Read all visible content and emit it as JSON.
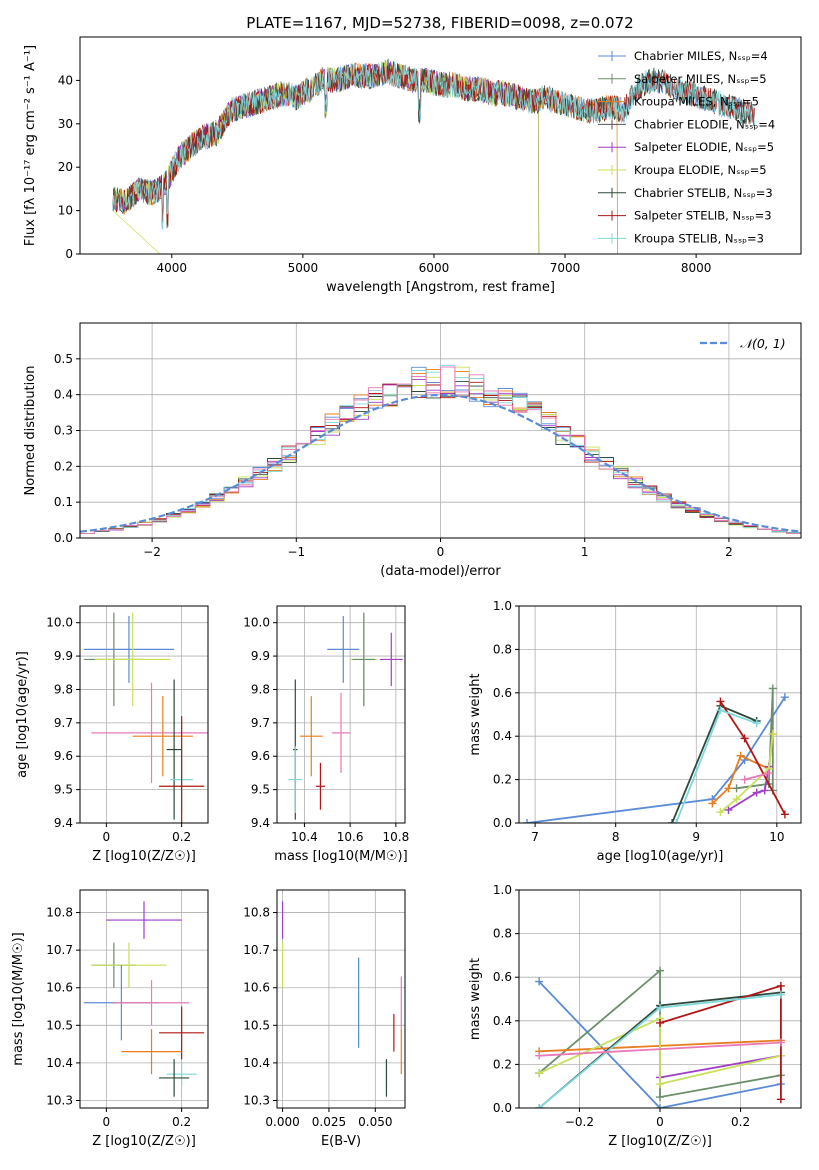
{
  "figure": {
    "title": "PLATE=1167, MJD=52738, FIBERID=0098, z=0.072"
  },
  "colors": {
    "Chabrier MILES": "#5b8bd6",
    "Salpeter MILES": "#6b8e6b",
    "Kroupa MILES": "#e87d1e",
    "Chabrier ELODIE": "#555555",
    "Salpeter ELODIE": "#a03ec8",
    "Kroupa ELODIE": "#c8e05a",
    "Chabrier STELIB": "#2e4a3a",
    "Salpeter STELIB": "#b01616",
    "Kroupa STELIB": "#7fd8dc",
    "Pink": "#e87ab8",
    "normal": "#5b8bd6"
  },
  "chart_data": [
    {
      "id": "spectrum",
      "type": "line",
      "title": "PLATE=1167, MJD=52738, FIBERID=0098, z=0.072",
      "xlabel": "wavelength [Angstrom, rest frame]",
      "ylabel": "Flux [fλ 10⁻¹⁷ erg cm⁻² s⁻¹ A⁻¹]",
      "xlim": [
        3300,
        8800
      ],
      "ylim": [
        0,
        50
      ],
      "xticks": [
        4000,
        5000,
        6000,
        7000,
        8000
      ],
      "yticks": [
        0,
        10,
        20,
        30,
        40
      ],
      "legend_position": "top-right",
      "legend": [
        "Chabrier MILES, N_SSP=4",
        "Salpeter MILES, N_SSP=5",
        "Kroupa MILES, N_SSP=5",
        "Chabrier ELODIE, N_SSP=4",
        "Salpeter ELODIE, N_SSP=5",
        "Kroupa ELODIE, N_SSP=5",
        "Chabrier STELIB, N_SSP=3",
        "Salpeter STELIB, N_SSP=3",
        "Kroupa STELIB, N_SSP=3"
      ],
      "series_keys": [
        "Chabrier MILES",
        "Salpeter MILES",
        "Kroupa MILES",
        "Chabrier ELODIE",
        "Salpeter ELODIE",
        "Kroupa ELODIE",
        "Chabrier STELIB",
        "Salpeter STELIB",
        "Kroupa STELIB"
      ],
      "x": [
        3550,
        3650,
        3750,
        3850,
        3950,
        4050,
        4150,
        4250,
        4350,
        4450,
        4550,
        4650,
        4750,
        4850,
        4950,
        5050,
        5150,
        5250,
        5350,
        5450,
        5550,
        5650,
        5750,
        5850,
        5950,
        6050,
        6150,
        6250,
        6350,
        6450,
        6550,
        6650,
        6750,
        6850,
        6950,
        7050,
        7150,
        7250,
        7350,
        7450,
        7550,
        7650,
        7750,
        7850,
        7950,
        8050,
        8150,
        8250,
        8350,
        8450
      ],
      "y": [
        13,
        12,
        15,
        14,
        16,
        22,
        25,
        27,
        28,
        33,
        34,
        35,
        36,
        37,
        36,
        38,
        40,
        40,
        41,
        41,
        41,
        42,
        41,
        40,
        40,
        39,
        39,
        38,
        38,
        37,
        37,
        36,
        35,
        36,
        35,
        34,
        33,
        33,
        34,
        33,
        38,
        40,
        40,
        38,
        37,
        36,
        35,
        34,
        33,
        32
      ],
      "ranges": {
        "Chabrier MILES": [
          3550,
          8450
        ],
        "Salpeter MILES": [
          3550,
          8450
        ],
        "Kroupa MILES": [
          3550,
          7400
        ],
        "Chabrier ELODIE": [
          3550,
          6800
        ],
        "Salpeter ELODIE": [
          3550,
          6800
        ],
        "Kroupa ELODIE": [
          3550,
          6800
        ],
        "Chabrier STELIB": [
          3550,
          8450
        ],
        "Salpeter STELIB": [
          3550,
          8450
        ],
        "Kroupa STELIB": [
          3550,
          8450
        ]
      }
    },
    {
      "id": "residuals",
      "type": "histogram",
      "xlabel": "(data-model)/error",
      "ylabel": "Normed distribution",
      "xlim": [
        -2.5,
        2.5
      ],
      "ylim": [
        0,
        0.6
      ],
      "xticks": [
        -2,
        -1,
        0,
        1,
        2
      ],
      "yticks": [
        0.0,
        0.1,
        0.2,
        0.3,
        0.4,
        0.5
      ],
      "grid": true,
      "legend_position": "top-right",
      "legend": [
        "𝒩(0, 1)"
      ],
      "series_keys": [
        "Chabrier MILES",
        "Kroupa MILES",
        "Salpeter ELODIE",
        "Kroupa ELODIE",
        "Chabrier STELIB",
        "Salpeter STELIB",
        "Kroupa STELIB",
        "Pink"
      ],
      "normal_curve": {
        "mean": 0,
        "sigma": 1
      }
    },
    {
      "id": "age-vs-Z",
      "type": "scatter",
      "xlabel": "Z [log10(Z/Z☉)]",
      "ylabel": "age [log10(age/yr)]",
      "xlim": [
        -0.07,
        0.27
      ],
      "ylim": [
        9.4,
        10.05
      ],
      "xticks": [
        0.0,
        0.2
      ],
      "yticks": [
        9.4,
        9.5,
        9.6,
        9.7,
        9.8,
        9.9,
        10.0
      ],
      "grid": true,
      "points": [
        {
          "key": "Chabrier MILES",
          "x": 0.06,
          "y": 9.92,
          "xerr": 0.12,
          "yerr": 0.1
        },
        {
          "key": "Salpeter MILES",
          "x": 0.02,
          "y": 9.89,
          "xerr": 0.08,
          "yerr": 0.14
        },
        {
          "key": "Kroupa ELODIE",
          "x": 0.07,
          "y": 9.89,
          "xerr": 0.1,
          "yerr": 0.14
        },
        {
          "key": "Pink",
          "x": 0.12,
          "y": 9.67,
          "xerr": 0.16,
          "yerr": 0.15
        },
        {
          "key": "Kroupa MILES",
          "x": 0.15,
          "y": 9.66,
          "xerr": 0.08,
          "yerr": 0.12
        },
        {
          "key": "Chabrier STELIB",
          "x": 0.18,
          "y": 9.62,
          "xerr": 0.02,
          "yerr": 0.21
        },
        {
          "key": "Kroupa STELIB",
          "x": 0.2,
          "y": 9.53,
          "xerr": 0.03,
          "yerr": 0.1
        },
        {
          "key": "Salpeter STELIB",
          "x": 0.2,
          "y": 9.51,
          "xerr": 0.06,
          "yerr": 0.21
        }
      ]
    },
    {
      "id": "age-vs-mass",
      "type": "scatter",
      "xlabel": "mass [log10(M/M☉)]",
      "ylabel": "",
      "xlim": [
        10.28,
        10.84
      ],
      "ylim": [
        9.4,
        10.05
      ],
      "xticks": [
        10.4,
        10.6,
        10.8
      ],
      "yticks": [
        9.4,
        9.5,
        9.6,
        9.7,
        9.8,
        9.9,
        10.0
      ],
      "grid": true,
      "points": [
        {
          "key": "Chabrier MILES",
          "x": 10.57,
          "y": 9.92,
          "xerr": 0.07,
          "yerr": 0.1
        },
        {
          "key": "Salpeter ELODIE",
          "x": 10.78,
          "y": 9.89,
          "xerr": 0.05,
          "yerr": 0.08
        },
        {
          "key": "Kroupa ELODIE",
          "x": 10.66,
          "y": 9.89,
          "xerr": 0.06,
          "yerr": 0.14
        },
        {
          "key": "Salpeter MILES",
          "x": 10.66,
          "y": 9.89,
          "xerr": 0.05,
          "yerr": 0.14
        },
        {
          "key": "Pink",
          "x": 10.56,
          "y": 9.67,
          "xerr": 0.04,
          "yerr": 0.12
        },
        {
          "key": "Kroupa MILES",
          "x": 10.43,
          "y": 9.66,
          "xerr": 0.05,
          "yerr": 0.12
        },
        {
          "key": "Chabrier STELIB",
          "x": 10.36,
          "y": 9.62,
          "xerr": 0.01,
          "yerr": 0.21
        },
        {
          "key": "Kroupa STELIB",
          "x": 10.36,
          "y": 9.53,
          "xerr": 0.03,
          "yerr": 0.1
        },
        {
          "key": "Salpeter STELIB",
          "x": 10.47,
          "y": 9.51,
          "xerr": 0.02,
          "yerr": 0.07
        }
      ]
    },
    {
      "id": "weight-vs-age",
      "type": "line",
      "xlabel": "age [log10(age/yr)]",
      "ylabel": "mass weight",
      "xlim": [
        6.8,
        10.3
      ],
      "ylim": [
        0,
        1.0
      ],
      "xticks": [
        7,
        8,
        9,
        10
      ],
      "yticks": [
        0.0,
        0.2,
        0.4,
        0.6,
        0.8,
        1.0
      ],
      "grid": true,
      "series": [
        {
          "key": "Chabrier MILES",
          "x": [
            6.9,
            9.2,
            9.6,
            10.1
          ],
          "y": [
            0.0,
            0.11,
            0.29,
            0.58
          ]
        },
        {
          "key": "Salpeter MILES",
          "x": [
            9.5,
            9.9,
            9.95,
            9.95
          ],
          "y": [
            0.16,
            0.18,
            0.62,
            0.15
          ]
        },
        {
          "key": "Kroupa MILES",
          "x": [
            9.2,
            9.4,
            9.55,
            9.9,
            9.95
          ],
          "y": [
            0.09,
            0.16,
            0.31,
            0.25,
            0.41
          ]
        },
        {
          "key": "Salpeter ELODIE",
          "x": [
            9.4,
            9.75,
            9.85,
            9.9
          ],
          "y": [
            0.06,
            0.14,
            0.15,
            0.26
          ]
        },
        {
          "key": "Kroupa ELODIE",
          "x": [
            9.3,
            9.5,
            9.9,
            9.95
          ],
          "y": [
            0.05,
            0.11,
            0.25,
            0.41
          ]
        },
        {
          "key": "Chabrier STELIB",
          "x": [
            8.7,
            9.3,
            9.75
          ],
          "y": [
            0.0,
            0.54,
            0.47
          ]
        },
        {
          "key": "Salpeter STELIB",
          "x": [
            9.3,
            9.6,
            10.1
          ],
          "y": [
            0.56,
            0.39,
            0.04
          ]
        },
        {
          "key": "Kroupa STELIB",
          "x": [
            8.75,
            9.3,
            9.75
          ],
          "y": [
            0.0,
            0.52,
            0.46
          ]
        },
        {
          "key": "Pink",
          "x": [
            9.6,
            9.9
          ],
          "y": [
            0.2,
            0.23
          ]
        }
      ]
    },
    {
      "id": "mass-vs-Z",
      "type": "scatter",
      "xlabel": "Z [log10(Z/Z☉)]",
      "ylabel": "mass [log10(M/M☉)]",
      "xlim": [
        -0.07,
        0.27
      ],
      "ylim": [
        10.28,
        10.86
      ],
      "xticks": [
        0.0,
        0.2
      ],
      "yticks": [
        10.3,
        10.4,
        10.5,
        10.6,
        10.7,
        10.8
      ],
      "grid": true,
      "points": [
        {
          "key": "Salpeter ELODIE",
          "x": 0.1,
          "y": 10.78,
          "xerr": 0.1,
          "yerr": 0.05
        },
        {
          "key": "Salpeter MILES",
          "x": 0.02,
          "y": 10.66,
          "xerr": 0.06,
          "yerr": 0.06
        },
        {
          "key": "Kroupa ELODIE",
          "x": 0.06,
          "y": 10.66,
          "xerr": 0.1,
          "yerr": 0.06
        },
        {
          "key": "Chabrier MILES",
          "x": 0.04,
          "y": 10.56,
          "xerr": 0.1,
          "yerr": 0.1
        },
        {
          "key": "Pink",
          "x": 0.12,
          "y": 10.56,
          "xerr": 0.1,
          "yerr": 0.06
        },
        {
          "key": "Salpeter STELIB",
          "x": 0.2,
          "y": 10.48,
          "xerr": 0.06,
          "yerr": 0.07
        },
        {
          "key": "Kroupa MILES",
          "x": 0.12,
          "y": 10.43,
          "xerr": 0.08,
          "yerr": 0.06
        },
        {
          "key": "Kroupa STELIB",
          "x": 0.2,
          "y": 10.37,
          "xerr": 0.04,
          "yerr": 0.03
        },
        {
          "key": "Chabrier STELIB",
          "x": 0.18,
          "y": 10.36,
          "xerr": 0.04,
          "yerr": 0.05
        }
      ]
    },
    {
      "id": "mass-vs-EBV",
      "type": "scatter",
      "xlabel": "E(B-V)",
      "ylabel": "",
      "xlim": [
        -0.003,
        0.066
      ],
      "ylim": [
        10.28,
        10.86
      ],
      "xticks": [
        0.0,
        0.025,
        0.05
      ],
      "xticklabels": [
        "0.000",
        "0.025",
        "0.050"
      ],
      "yticks": [
        10.3,
        10.4,
        10.5,
        10.6,
        10.7,
        10.8
      ],
      "grid": true,
      "points": [
        {
          "key": "Salpeter ELODIE",
          "x": 0.0,
          "y": 10.78,
          "xerr": 0,
          "yerr": 0.05
        },
        {
          "key": "Kroupa ELODIE",
          "x": 0.0,
          "y": 10.66,
          "xerr": 0,
          "yerr": 0.06
        },
        {
          "key": "Chabrier MILES",
          "x": 0.041,
          "y": 10.56,
          "xerr": 0,
          "yerr": 0.12
        },
        {
          "key": "Pink",
          "x": 0.064,
          "y": 10.56,
          "xerr": 0,
          "yerr": 0.07
        },
        {
          "key": "Salpeter STELIB",
          "x": 0.06,
          "y": 10.48,
          "xerr": 0,
          "yerr": 0.05
        },
        {
          "key": "Kroupa MILES",
          "x": 0.064,
          "y": 10.43,
          "xerr": 0,
          "yerr": 0.06
        },
        {
          "key": "Kroupa STELIB",
          "x": 0.056,
          "y": 10.37,
          "xerr": 0,
          "yerr": 0.04
        },
        {
          "key": "Chabrier STELIB",
          "x": 0.056,
          "y": 10.36,
          "xerr": 0,
          "yerr": 0.05
        }
      ]
    },
    {
      "id": "weight-vs-Z",
      "type": "line",
      "xlabel": "Z [log10(Z/Z☉)]",
      "ylabel": "mass weight",
      "xlim": [
        -0.35,
        0.35
      ],
      "ylim": [
        0,
        1.0
      ],
      "xticks": [
        -0.2,
        0.0,
        0.2
      ],
      "yticks": [
        0.0,
        0.2,
        0.4,
        0.6,
        0.8,
        1.0
      ],
      "grid": true,
      "series": [
        {
          "key": "Chabrier MILES",
          "x": [
            -0.3,
            0.0,
            0.3
          ],
          "y": [
            0.58,
            0.0,
            0.11
          ]
        },
        {
          "key": "Salpeter MILES",
          "x": [
            -0.3,
            0.0,
            0.0,
            0.3
          ],
          "y": [
            0.16,
            0.63,
            0.05,
            0.15
          ]
        },
        {
          "key": "Kroupa MILES",
          "x": [
            -0.3,
            0.3
          ],
          "y": [
            0.26,
            0.31
          ]
        },
        {
          "key": "Salpeter ELODIE",
          "x": [
            0.0,
            0.3
          ],
          "y": [
            0.14,
            0.24
          ]
        },
        {
          "key": "Kroupa ELODIE",
          "x": [
            -0.3,
            0.0,
            0.0,
            0.3
          ],
          "y": [
            0.16,
            0.41,
            0.11,
            0.24
          ]
        },
        {
          "key": "Chabrier STELIB",
          "x": [
            -0.3,
            0.0,
            0.3
          ],
          "y": [
            0.0,
            0.47,
            0.53
          ]
        },
        {
          "key": "Salpeter STELIB",
          "x": [
            0.0,
            0.3,
            0.3
          ],
          "y": [
            0.39,
            0.56,
            0.04
          ]
        },
        {
          "key": "Kroupa STELIB",
          "x": [
            -0.3,
            0.0,
            0.3
          ],
          "y": [
            0.0,
            0.46,
            0.52
          ]
        },
        {
          "key": "Pink",
          "x": [
            -0.3,
            0.3
          ],
          "y": [
            0.24,
            0.3
          ]
        }
      ]
    }
  ]
}
